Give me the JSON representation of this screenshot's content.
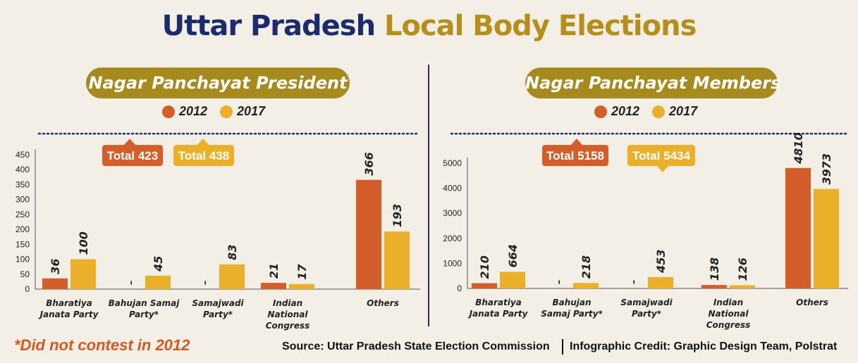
{
  "header": {
    "title_part1": "Uttar Pradesh",
    "title_part2": "Local Body Elections"
  },
  "colors": {
    "c2012": "#d35e2a",
    "c2017": "#eab02a",
    "title_blue": "#1c2b6b",
    "title_gold": "#b58f1a",
    "pill": "#a78a1e"
  },
  "footer": {
    "note": "*Did not contest in 2012",
    "source": "Source: Uttar Pradesh State Election Commission",
    "credit": "Infographic Credit: Graphic Design Team, Polstrat"
  },
  "chart_data": [
    {
      "type": "bar",
      "title": "Nagar Panchayat President",
      "legend": [
        "2012",
        "2017"
      ],
      "categories": [
        [
          "Bharatiya",
          "Janata Party"
        ],
        [
          "Bahujan Samaj",
          "Party*"
        ],
        [
          "Samajwadi",
          "Party*"
        ],
        [
          "Indian",
          "National",
          "Congress"
        ],
        [
          "Others"
        ]
      ],
      "series": [
        {
          "name": "2012",
          "values": [
            36,
            null,
            null,
            21,
            366
          ],
          "labels": [
            "36",
            "–",
            "–",
            "21",
            "366"
          ]
        },
        {
          "name": "2017",
          "values": [
            100,
            45,
            83,
            17,
            193
          ],
          "labels": [
            "100",
            "45",
            "83",
            "17",
            "193"
          ]
        }
      ],
      "totals": [
        "Total 423",
        "Total 438"
      ],
      "ylim": [
        0,
        450
      ],
      "yticks": [
        0,
        50,
        100,
        150,
        200,
        250,
        300,
        350,
        400,
        450
      ]
    },
    {
      "type": "bar",
      "title": "Nagar Panchayat Members",
      "legend": [
        "2012",
        "2017"
      ],
      "categories": [
        [
          "Bharatiya",
          "Janata Party"
        ],
        [
          "Bahujan",
          "Samaj Party*"
        ],
        [
          "Samajwadi",
          "Party*"
        ],
        [
          "Indian",
          "National",
          "Congress"
        ],
        [
          "Others"
        ]
      ],
      "series": [
        {
          "name": "2012",
          "values": [
            210,
            null,
            null,
            138,
            4810
          ],
          "labels": [
            "210",
            "–",
            "–",
            "138",
            "4810"
          ]
        },
        {
          "name": "2017",
          "values": [
            664,
            218,
            453,
            126,
            3973
          ],
          "labels": [
            "664",
            "218",
            "453",
            "126",
            "3973"
          ]
        }
      ],
      "totals": [
        "Total 5158",
        "Total 5434"
      ],
      "ylim": [
        0,
        5000
      ],
      "yticks": [
        0,
        1000,
        2000,
        3000,
        4000,
        5000
      ]
    }
  ]
}
